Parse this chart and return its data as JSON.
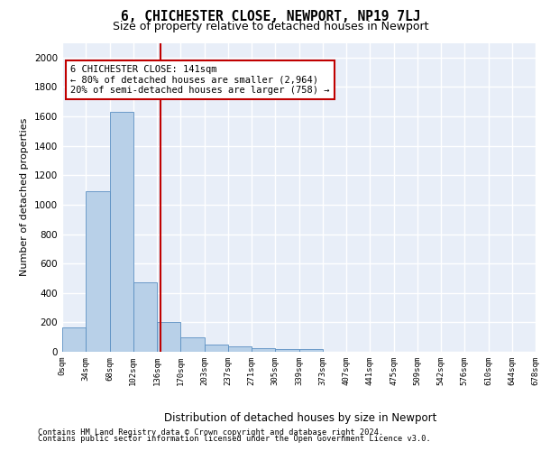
{
  "title": "6, CHICHESTER CLOSE, NEWPORT, NP19 7LJ",
  "subtitle": "Size of property relative to detached houses in Newport",
  "xlabel": "Distribution of detached houses by size in Newport",
  "ylabel": "Number of detached properties",
  "bar_values": [
    165,
    1090,
    1630,
    475,
    200,
    100,
    47,
    35,
    22,
    20,
    20,
    0,
    0,
    0,
    0,
    0,
    0,
    0,
    0,
    0
  ],
  "bar_labels": [
    "0sqm",
    "34sqm",
    "68sqm",
    "102sqm",
    "136sqm",
    "170sqm",
    "203sqm",
    "237sqm",
    "271sqm",
    "305sqm",
    "339sqm",
    "373sqm",
    "407sqm",
    "441sqm",
    "475sqm",
    "509sqm",
    "542sqm",
    "576sqm",
    "610sqm",
    "644sqm",
    "678sqm"
  ],
  "bar_color": "#b8d0e8",
  "bar_edge_color": "#5a8fc2",
  "vline_color": "#c00000",
  "vline_x": 4.15,
  "annotation_text": "6 CHICHESTER CLOSE: 141sqm\n← 80% of detached houses are smaller (2,964)\n20% of semi-detached houses are larger (758) →",
  "annotation_box_color": "#ffffff",
  "annotation_box_edge": "#c00000",
  "ylim": [
    0,
    2100
  ],
  "yticks": [
    0,
    200,
    400,
    600,
    800,
    1000,
    1200,
    1400,
    1600,
    1800,
    2000
  ],
  "background_color": "#e8eef8",
  "grid_color": "#ffffff",
  "footer_line1": "Contains HM Land Registry data © Crown copyright and database right 2024.",
  "footer_line2": "Contains public sector information licensed under the Open Government Licence v3.0."
}
